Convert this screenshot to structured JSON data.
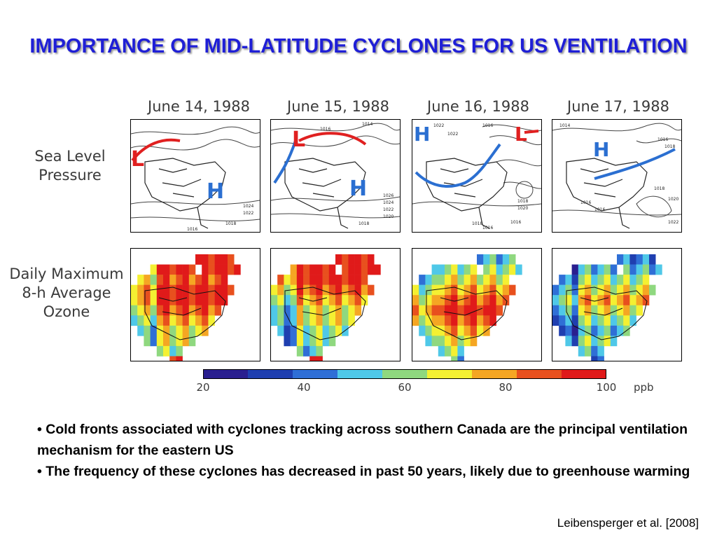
{
  "slide": {
    "title": "IMPORTANCE OF MID-LATITUDE CYCLONES FOR US VENTILATION",
    "citation": "Leibensperger et al. [2008]"
  },
  "figure": {
    "dates": [
      "June 14, 1988",
      "June 15, 1988",
      "June 16, 1988",
      "June 17, 1988"
    ],
    "row_labels": {
      "pressure": "Sea Level\nPressure",
      "ozone": "Daily Maximum\n8-h Average\nOzone"
    },
    "pressure_markers": [
      {
        "high": "H",
        "low": "L"
      },
      {
        "high": "H",
        "low": "L"
      },
      {
        "high": "H",
        "low": "L"
      },
      {
        "high": "H"
      }
    ],
    "isobar_labels": [
      [
        "1024",
        "1022",
        "1018",
        "1016"
      ],
      [
        "1016",
        "1014",
        "1026",
        "1024",
        "1022",
        "1020",
        "1018"
      ],
      [
        "1022",
        "1022",
        "1016",
        "1018",
        "1020",
        "1016",
        "1018",
        "1016"
      ],
      [
        "1014",
        "1016",
        "1018",
        "1016",
        "1016",
        "1018",
        "1020",
        "1022"
      ]
    ],
    "colorbar": {
      "ticks": [
        "20",
        "40",
        "60",
        "80",
        "100"
      ],
      "unit": "ppb",
      "colors": [
        "#2a1f8f",
        "#1f3fb0",
        "#2f6fd6",
        "#4fc8e8",
        "#8fd87f",
        "#f4f032",
        "#f5a623",
        "#e8501e",
        "#e01a1a"
      ]
    }
  },
  "bullets": [
    "• Cold fronts associated with cyclones tracking across southern Canada are the principal ventilation mechanism for the eastern US",
    "• The frequency of these cyclones has decreased in past 50 years, likely due to greenhouse warming"
  ]
}
